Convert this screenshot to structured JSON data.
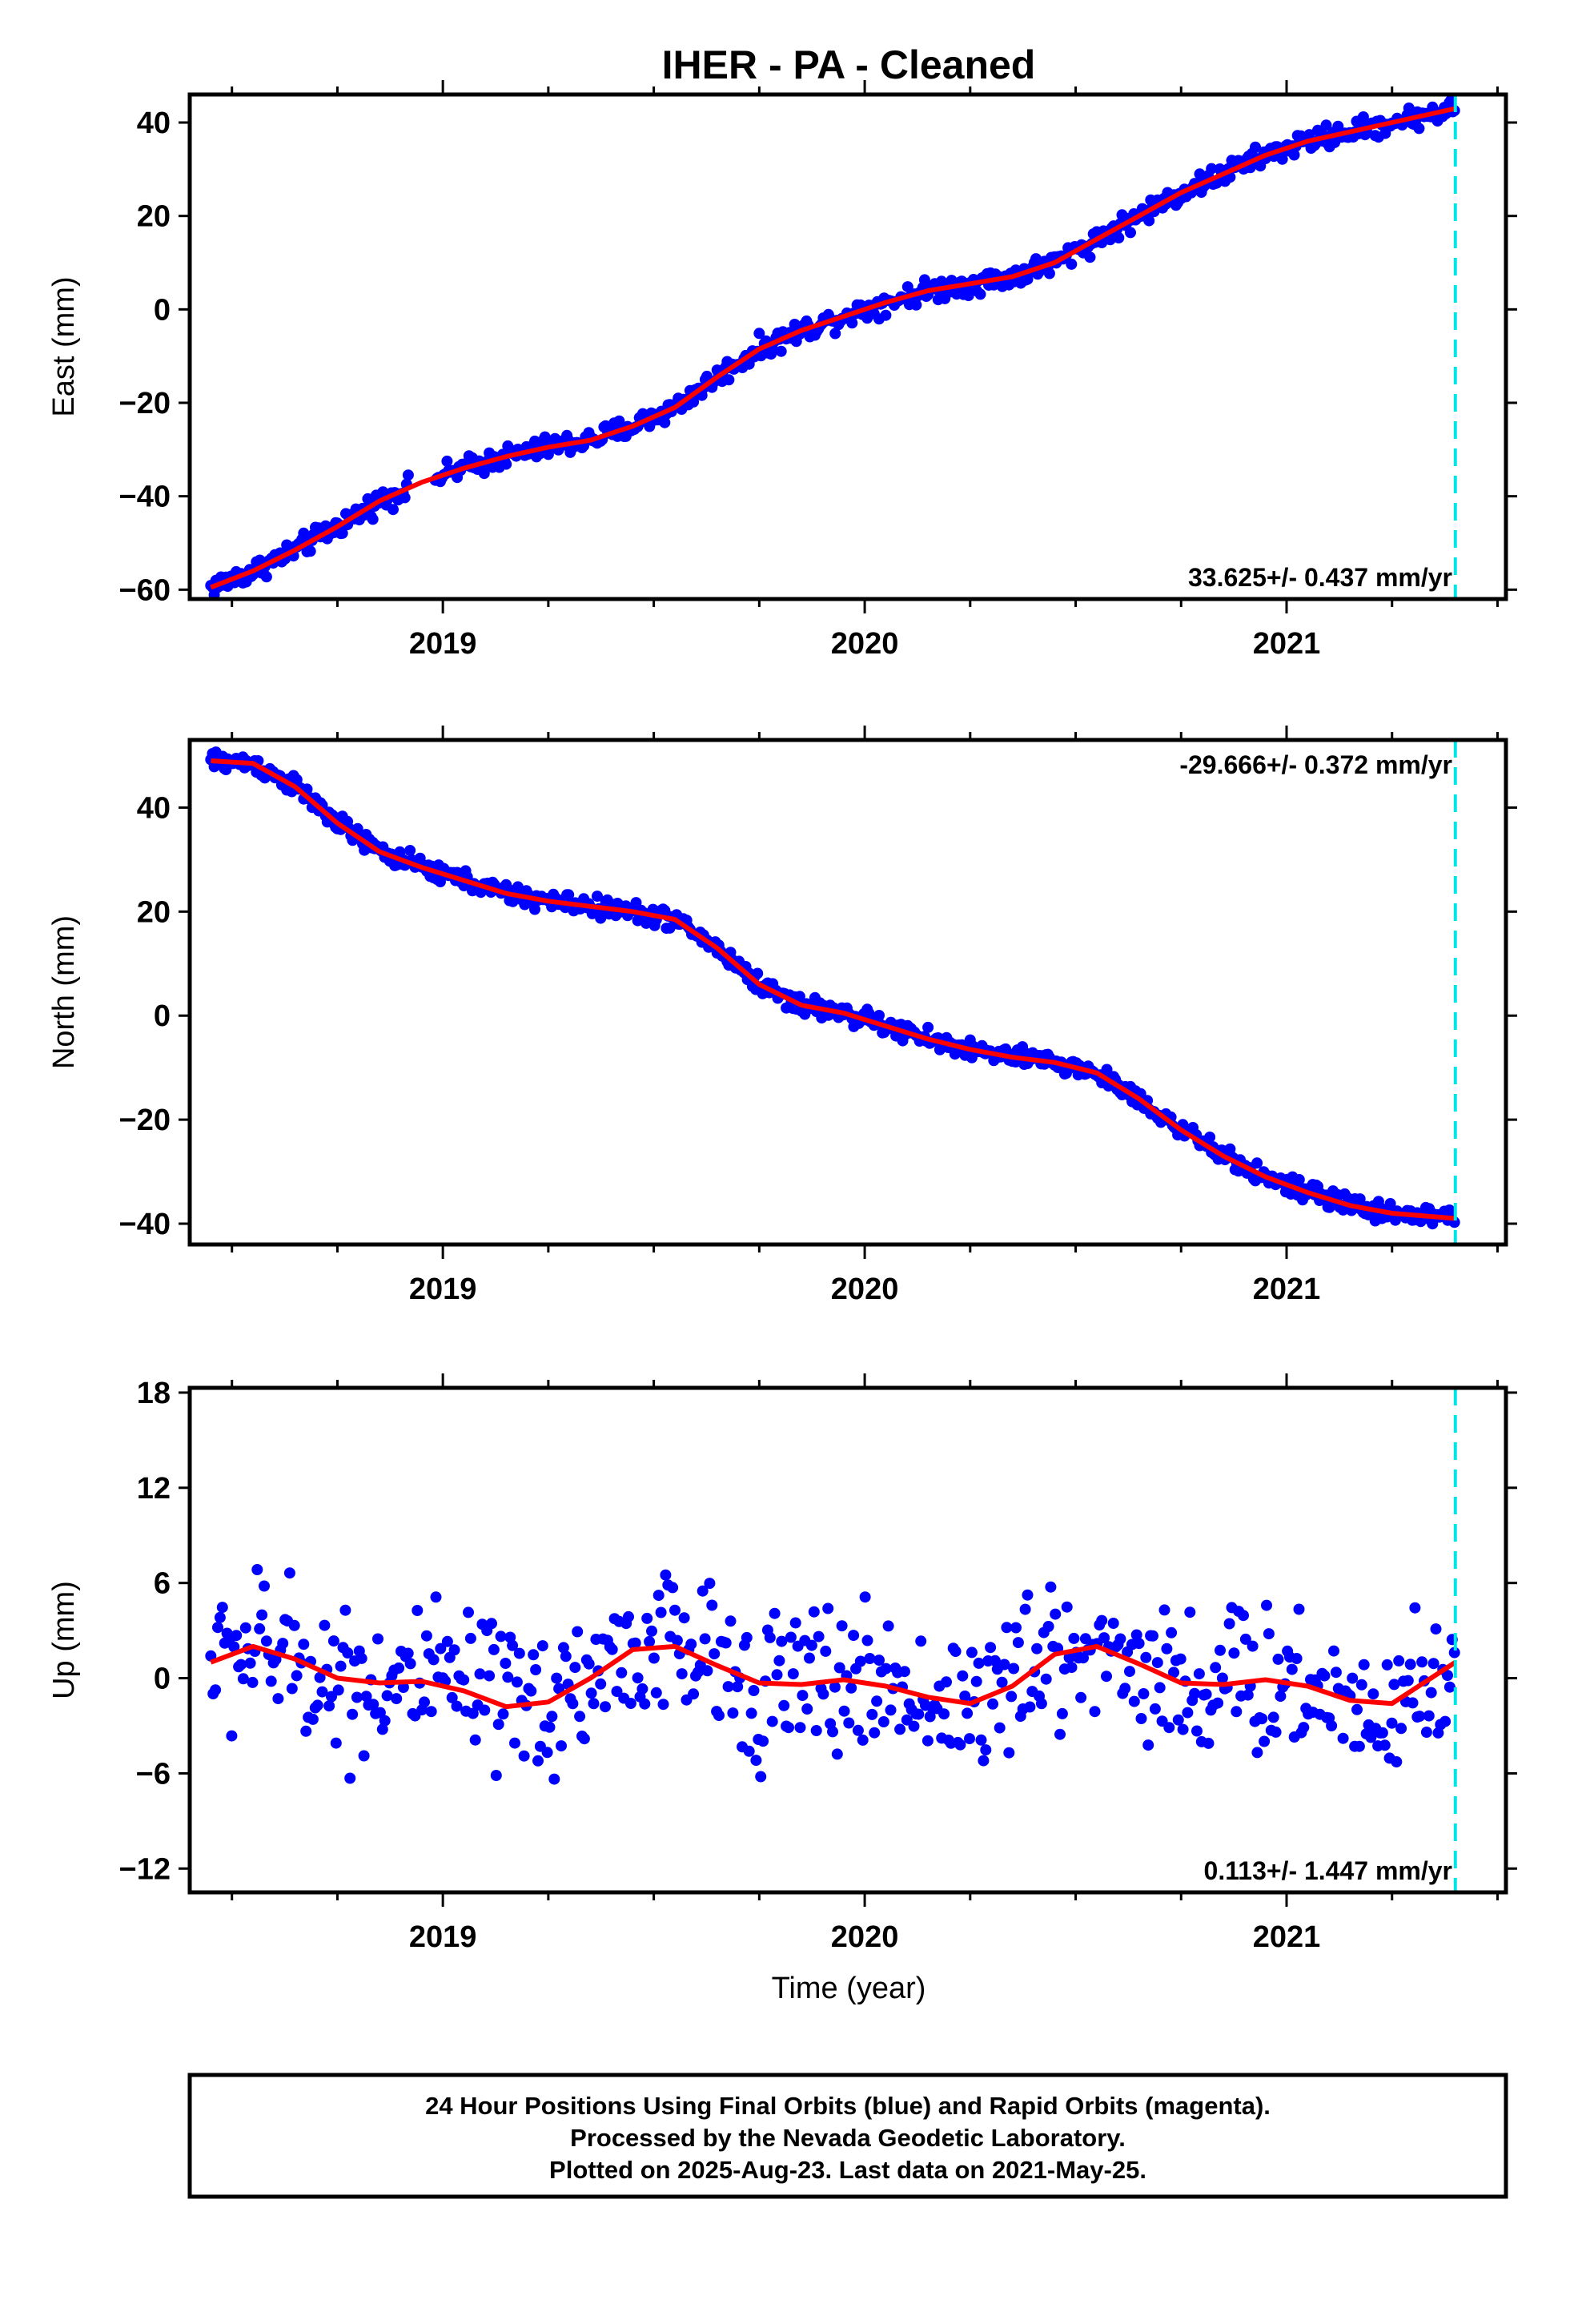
{
  "title": "IHER  - PA - Cleaned",
  "xlabel": "Time (year)",
  "x_tick_labels": [
    "2019",
    "2020",
    "2021"
  ],
  "colors": {
    "points": "#0000ff",
    "fit": "#ff0000",
    "last_data_line": "#00e5e5",
    "frame": "#000000"
  },
  "footer": {
    "line1": "24 Hour Positions Using Final Orbits (blue) and Rapid Orbits (magenta).",
    "line2": "Processed by the Nevada Geodetic Laboratory.",
    "line3": "Plotted on 2025-Aug-23. Last data on 2021-May-25."
  },
  "chart_data": [
    {
      "type": "scatter",
      "component": "East",
      "ylabel": "East (mm)",
      "rate_text": "33.625+/- 0.437 mm/yr",
      "rate_position": "bottom-right",
      "xlim": [
        2018.4,
        2021.52
      ],
      "ylim": [
        -62,
        46
      ],
      "yticks": [
        -60,
        -40,
        -20,
        0,
        20,
        40
      ],
      "ytick_labels": [
        "-60",
        "-40",
        "-20",
        "0",
        "20",
        "40"
      ],
      "last_data": 2021.4,
      "fit_curve": [
        [
          2018.45,
          -59.5
        ],
        [
          2018.55,
          -56
        ],
        [
          2018.65,
          -51.5
        ],
        [
          2018.75,
          -46.5
        ],
        [
          2018.85,
          -41
        ],
        [
          2018.95,
          -37
        ],
        [
          2019.05,
          -34
        ],
        [
          2019.15,
          -31.5
        ],
        [
          2019.25,
          -29.5
        ],
        [
          2019.35,
          -28
        ],
        [
          2019.45,
          -25
        ],
        [
          2019.55,
          -21
        ],
        [
          2019.65,
          -14.5
        ],
        [
          2019.75,
          -8.5
        ],
        [
          2019.85,
          -4.5
        ],
        [
          2019.95,
          -1.5
        ],
        [
          2020.05,
          1.5
        ],
        [
          2020.15,
          4
        ],
        [
          2020.25,
          5.5
        ],
        [
          2020.35,
          7
        ],
        [
          2020.45,
          10
        ],
        [
          2020.55,
          15
        ],
        [
          2020.65,
          20
        ],
        [
          2020.75,
          25
        ],
        [
          2020.85,
          29
        ],
        [
          2020.95,
          33
        ],
        [
          2021.05,
          36
        ],
        [
          2021.15,
          38
        ],
        [
          2021.25,
          40
        ],
        [
          2021.4,
          43
        ]
      ],
      "scatter": {
        "spread": 2.0,
        "step": 0.004,
        "gap": [
          2018.92,
          2018.98
        ]
      }
    },
    {
      "type": "scatter",
      "component": "North",
      "ylabel": "North (mm)",
      "rate_text": "-29.666+/- 0.372 mm/yr",
      "rate_position": "top-right",
      "xlim": [
        2018.4,
        2021.52
      ],
      "ylim": [
        -44,
        53
      ],
      "yticks": [
        -40,
        -20,
        0,
        20,
        40
      ],
      "ytick_labels": [
        "-40",
        "-20",
        "0",
        "20",
        "40"
      ],
      "last_data": 2021.4,
      "fit_curve": [
        [
          2018.45,
          49
        ],
        [
          2018.55,
          48.5
        ],
        [
          2018.65,
          44
        ],
        [
          2018.75,
          37
        ],
        [
          2018.85,
          31.5
        ],
        [
          2018.95,
          28.5
        ],
        [
          2019.05,
          26
        ],
        [
          2019.15,
          23.5
        ],
        [
          2019.25,
          22
        ],
        [
          2019.35,
          21
        ],
        [
          2019.45,
          20
        ],
        [
          2019.55,
          18.5
        ],
        [
          2019.65,
          13
        ],
        [
          2019.75,
          6
        ],
        [
          2019.85,
          2
        ],
        [
          2019.95,
          0.5
        ],
        [
          2020.05,
          -2
        ],
        [
          2020.15,
          -4.5
        ],
        [
          2020.25,
          -6.5
        ],
        [
          2020.35,
          -8
        ],
        [
          2020.45,
          -9
        ],
        [
          2020.55,
          -11
        ],
        [
          2020.65,
          -16
        ],
        [
          2020.75,
          -22
        ],
        [
          2020.85,
          -27
        ],
        [
          2020.95,
          -31
        ],
        [
          2021.05,
          -34
        ],
        [
          2021.15,
          -36.5
        ],
        [
          2021.25,
          -38
        ],
        [
          2021.4,
          -39
        ]
      ],
      "scatter": {
        "spread": 1.6,
        "step": 0.004,
        "gap": []
      }
    },
    {
      "type": "scatter",
      "component": "Up",
      "ylabel": "Up (mm)",
      "rate_text": "0.113+/- 1.447 mm/yr",
      "rate_position": "bottom-right",
      "xlim": [
        2018.4,
        2021.52
      ],
      "ylim": [
        -13.5,
        18.3
      ],
      "yticks": [
        -12,
        -6,
        0,
        6,
        12,
        18
      ],
      "ytick_labels": [
        "-12",
        "-6",
        "0",
        "6",
        "12",
        "18"
      ],
      "last_data": 2021.4,
      "fit_curve": [
        [
          2018.45,
          1
        ],
        [
          2018.55,
          2
        ],
        [
          2018.65,
          1.2
        ],
        [
          2018.75,
          0
        ],
        [
          2018.85,
          -0.3
        ],
        [
          2018.95,
          -0.2
        ],
        [
          2019.05,
          -0.8
        ],
        [
          2019.15,
          -1.8
        ],
        [
          2019.25,
          -1.5
        ],
        [
          2019.35,
          0
        ],
        [
          2019.45,
          1.8
        ],
        [
          2019.55,
          2
        ],
        [
          2019.65,
          0.8
        ],
        [
          2019.75,
          -0.3
        ],
        [
          2019.85,
          -0.4
        ],
        [
          2019.95,
          -0.1
        ],
        [
          2020.05,
          -0.5
        ],
        [
          2020.15,
          -1.2
        ],
        [
          2020.25,
          -1.6
        ],
        [
          2020.35,
          -0.5
        ],
        [
          2020.45,
          1.5
        ],
        [
          2020.55,
          2
        ],
        [
          2020.65,
          0.9
        ],
        [
          2020.75,
          -0.3
        ],
        [
          2020.85,
          -0.4
        ],
        [
          2020.95,
          -0.1
        ],
        [
          2021.05,
          -0.5
        ],
        [
          2021.15,
          -1.4
        ],
        [
          2021.25,
          -1.6
        ],
        [
          2021.4,
          1
        ]
      ],
      "scatter": {
        "spread": 4.2,
        "step": 0.0055,
        "gap": []
      }
    }
  ]
}
